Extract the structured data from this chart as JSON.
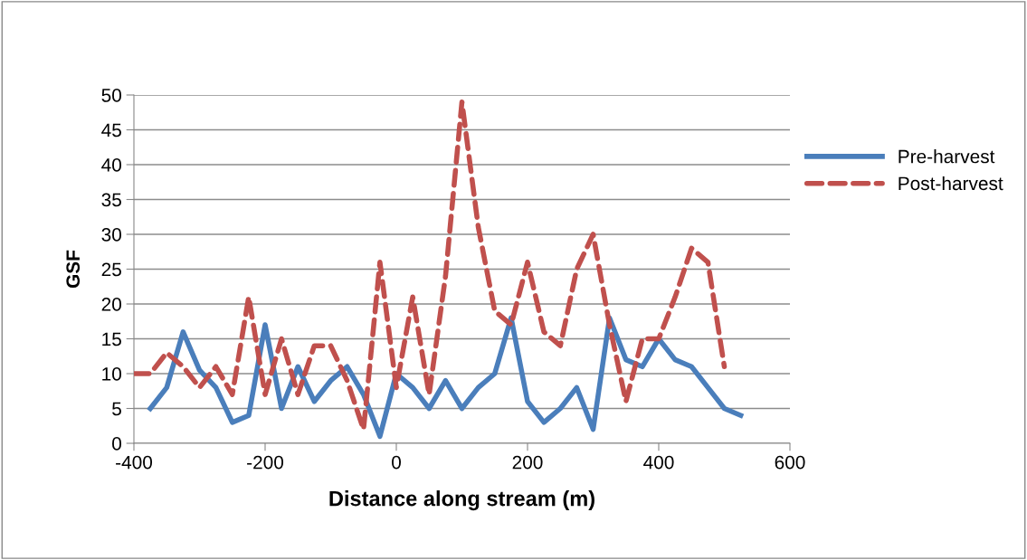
{
  "chart_data": {
    "type": "line",
    "xlabel": "Distance along stream (m)",
    "ylabel": "GSF",
    "xlim": [
      -400,
      600
    ],
    "xticks": [
      -400,
      -200,
      0,
      200,
      400,
      600
    ],
    "ylim": [
      0,
      50
    ],
    "yticks": [
      0,
      5,
      10,
      15,
      20,
      25,
      30,
      35,
      40,
      45,
      50
    ],
    "grid": "y",
    "legend": "right",
    "marker": "none",
    "series": [
      {
        "name": "Pre-harvest",
        "color": "#4a7ebb",
        "line_style": "solid",
        "x": [
          -375,
          -350,
          -325,
          -300,
          -275,
          -250,
          -225,
          -200,
          -175,
          -150,
          -125,
          -100,
          -75,
          -50,
          -25,
          0,
          25,
          50,
          75,
          100,
          125,
          150,
          175,
          200,
          225,
          250,
          275,
          300,
          325,
          350,
          375,
          400,
          425,
          450,
          475,
          500,
          525
        ],
        "values": [
          5,
          8,
          16,
          10.5,
          8,
          3,
          4,
          17,
          5,
          11,
          6,
          9,
          11,
          7,
          1,
          10,
          8,
          5,
          9,
          5,
          8,
          10,
          18,
          6,
          3,
          5,
          8,
          2,
          18,
          12,
          11,
          15,
          12,
          11,
          8,
          5,
          4
        ]
      },
      {
        "name": "Post-harvest",
        "color": "#c0504d",
        "line_style": "dashed",
        "x": [
          -400,
          -375,
          -350,
          -325,
          -300,
          -275,
          -250,
          -225,
          -200,
          -175,
          -150,
          -125,
          -100,
          -75,
          -50,
          -25,
          0,
          25,
          50,
          75,
          100,
          125,
          150,
          175,
          200,
          225,
          250,
          275,
          300,
          325,
          350,
          375,
          400,
          425,
          450,
          475,
          500
        ],
        "values": [
          10,
          10,
          13,
          11,
          8,
          11,
          7,
          21,
          7,
          15,
          7,
          14,
          14,
          9,
          2,
          26,
          8,
          21,
          7,
          24,
          49,
          31,
          19,
          17,
          26,
          16,
          14,
          25,
          30,
          17,
          6,
          15,
          15,
          21,
          28,
          26,
          11
        ]
      }
    ]
  }
}
